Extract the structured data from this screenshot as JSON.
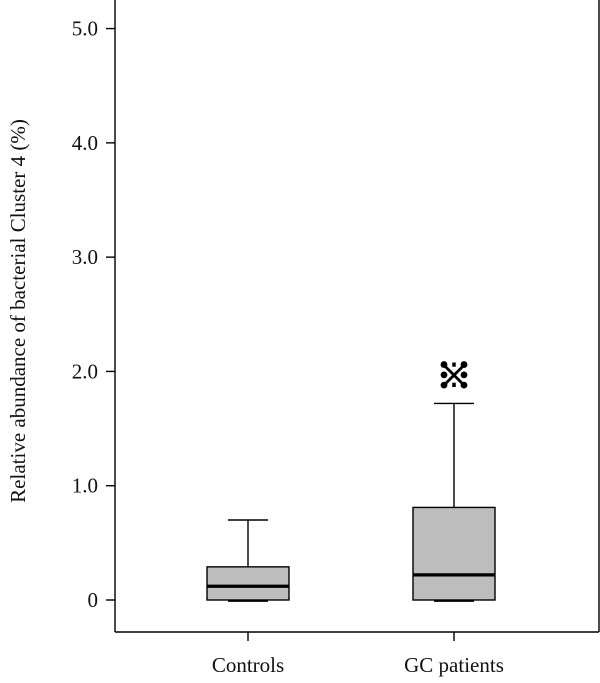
{
  "chart_data": {
    "type": "box",
    "title": "",
    "xlabel": "",
    "ylabel": "Relative abundance of bacterial Cluster 4 (%)",
    "ylim": [
      -0.28,
      5.25
    ],
    "yticks": [
      0,
      1.0,
      2.0,
      3.0,
      4.0,
      5.0
    ],
    "ytick_labels": [
      "0",
      "1.0",
      "2.0",
      "3.0",
      "4.0",
      "5.0"
    ],
    "grid": false,
    "categories": [
      "Controls",
      "GC patients"
    ],
    "boxes": [
      {
        "name": "Controls",
        "min": -0.01,
        "q1": 0.0,
        "median": 0.12,
        "q3": 0.29,
        "max": 0.7,
        "outliers": []
      },
      {
        "name": "GC patients",
        "min": -0.01,
        "q1": 0.0,
        "median": 0.22,
        "q3": 0.81,
        "max": 1.72,
        "outliers": [
          2.06,
          2.06,
          1.97,
          1.97,
          1.88,
          1.88
        ]
      }
    ],
    "annotations": [
      {
        "text": "※",
        "category": "GC patients",
        "y": 1.97
      }
    ],
    "colors": {
      "box_fill": "#bdbdbd",
      "line": "#000000"
    }
  }
}
